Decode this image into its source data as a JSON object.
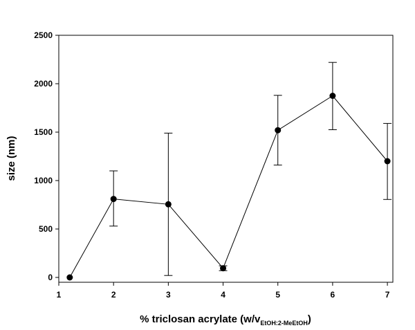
{
  "chart_data": {
    "type": "line",
    "title": "",
    "xlabel_main": "% triclosan acrylate (w/v",
    "xlabel_sub": "EtOH:2-MeEtOH",
    "xlabel_end": ")",
    "ylabel": "size (nm)",
    "xlim": [
      1,
      7.1
    ],
    "ylim": [
      -50,
      2500
    ],
    "x_ticks": [
      "1",
      "2",
      "3",
      "4",
      "5",
      "6",
      "7"
    ],
    "y_ticks": [
      "0",
      "500",
      "1000",
      "1500",
      "2000",
      "2500"
    ],
    "grid": false,
    "legend": "none",
    "series": [
      {
        "x": [
          1.2,
          2,
          3,
          4,
          5,
          6,
          7
        ],
        "y": [
          0,
          810,
          755,
          95,
          1520,
          1875,
          1200
        ],
        "err_low": [
          0,
          280,
          735,
          25,
          360,
          350,
          395
        ],
        "err_high": [
          0,
          290,
          735,
          25,
          360,
          345,
          390
        ]
      }
    ],
    "line_color": "#000000",
    "marker_color": "#000000"
  }
}
